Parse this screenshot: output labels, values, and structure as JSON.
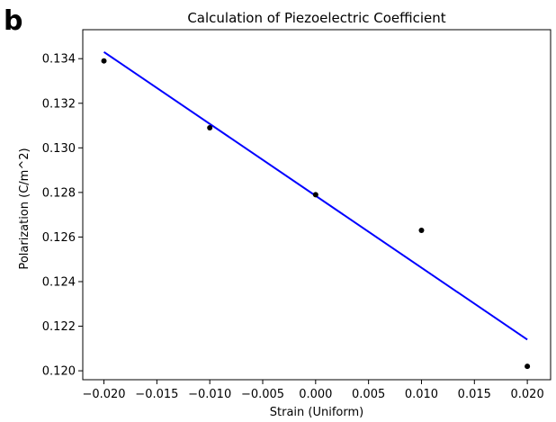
{
  "panel_label": "b",
  "chart_data": {
    "type": "scatter",
    "title": "Calculation of Piezoelectric Coefficient",
    "xlabel": "Strain (Uniform)",
    "ylabel": "Polarization (C/m^2)",
    "xlim": [
      -0.022,
      0.0222
    ],
    "ylim": [
      0.1196,
      0.1353
    ],
    "xticks": [
      -0.02,
      -0.015,
      -0.01,
      -0.005,
      0.0,
      0.005,
      0.01,
      0.015,
      0.02
    ],
    "xtick_labels": [
      "−0.020",
      "−0.015",
      "−0.010",
      "−0.005",
      "0.000",
      "0.005",
      "0.010",
      "0.015",
      "0.020"
    ],
    "yticks": [
      0.12,
      0.122,
      0.124,
      0.126,
      0.128,
      0.13,
      0.132,
      0.134
    ],
    "ytick_labels": [
      "0.120",
      "0.122",
      "0.124",
      "0.126",
      "0.128",
      "0.130",
      "0.132",
      "0.134"
    ],
    "grid": false,
    "legend": "none",
    "points": {
      "x": [
        -0.02,
        -0.01,
        0.0,
        0.01,
        0.02
      ],
      "y": [
        0.1339,
        0.1309,
        0.1279,
        0.1263,
        0.1202
      ],
      "color": "#000000"
    },
    "fit_line": {
      "x": [
        -0.02,
        0.02
      ],
      "y": [
        0.1343,
        0.1214
      ],
      "color": "#0000ff"
    }
  }
}
